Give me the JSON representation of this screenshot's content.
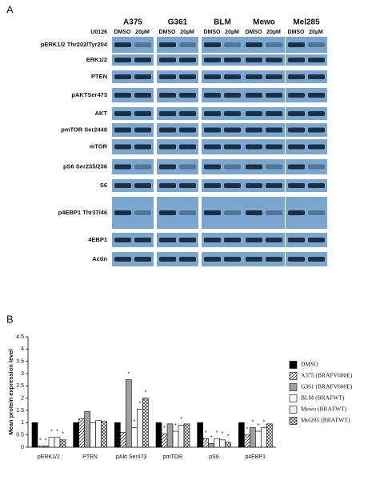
{
  "figure": {
    "panel_a": "A",
    "panel_b": "B",
    "treatment_label": "U0126",
    "treatments": [
      "DMSO",
      "20µM"
    ],
    "cell_lines": [
      "A375",
      "G361",
      "BLM",
      "Mewo",
      "Mel285"
    ],
    "rows": [
      "pERK1/2 Thr202/Tyr204",
      "ERK1/2",
      "PTEN",
      "pAKTSer473",
      "AKT",
      "pmTOR Ser2448",
      "mTOR",
      "pS6 Ser235/236",
      "S6",
      "p4EBP1 Thr37/46",
      "4EBP1",
      "Actin"
    ]
  },
  "chart_data": {
    "type": "bar",
    "y_label": "Mean protein expression level",
    "categories": [
      "pERK1/2",
      "PTEN",
      "pAkt Ser473",
      "pmTOR",
      "pS6",
      "p4EBP1"
    ],
    "ylim": [
      0,
      4.5
    ],
    "yticks": [
      0,
      0.5,
      1,
      1.5,
      2,
      2.5,
      3,
      3.5,
      4,
      4.5
    ],
    "series": [
      {
        "name": "DMSO",
        "color": "#000000",
        "pattern": "solid",
        "values": [
          1,
          1,
          1,
          1,
          1,
          1
        ],
        "significance": [
          null,
          null,
          null,
          null,
          null,
          null
        ]
      },
      {
        "name": "A375 (BRAFV600E)",
        "color": "#ffffff",
        "pattern": "diagonal",
        "values": [
          0.05,
          1.15,
          0.6,
          0.55,
          0.35,
          0.5
        ],
        "significance": [
          "*",
          null,
          null,
          "*",
          "*",
          "*"
        ]
      },
      {
        "name": "G361 (BRAFV600E)",
        "color": "#a0a0a0",
        "pattern": "solid",
        "values": [
          0.05,
          1.45,
          2.75,
          0.95,
          0.15,
          0.8
        ],
        "significance": [
          "*",
          null,
          "*",
          null,
          "*",
          "*"
        ]
      },
      {
        "name": "BLM (BRAFWT)",
        "color": "#ffffff",
        "pattern": "solid",
        "values": [
          0.4,
          1.0,
          0.8,
          0.65,
          0.35,
          0.65
        ],
        "significance": [
          "*",
          null,
          "*",
          "*",
          "*",
          "*"
        ]
      },
      {
        "name": "Mewo (BRAFWT)",
        "color": "#f4f4f4",
        "pattern": "solid",
        "values": [
          0.4,
          1.1,
          1.55,
          0.9,
          0.3,
          0.8
        ],
        "significance": [
          "*",
          null,
          "*",
          "*",
          "*",
          "*"
        ]
      },
      {
        "name": "Mel285 (BRAFWT)",
        "color": "#ffffff",
        "pattern": "cross",
        "values": [
          0.3,
          1.05,
          2.0,
          0.95,
          0.2,
          0.95
        ],
        "significance": [
          "*",
          null,
          "*",
          null,
          "*",
          null
        ]
      }
    ]
  }
}
